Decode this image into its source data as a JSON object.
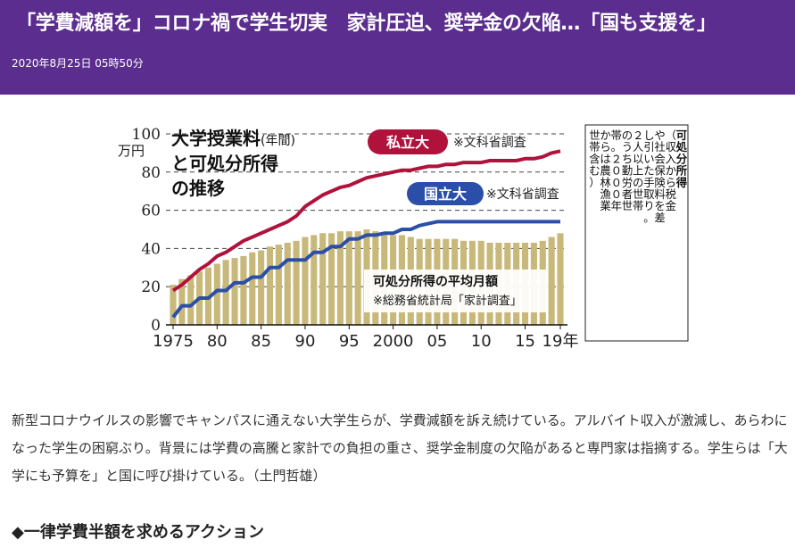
{
  "header": {
    "headline": "「学費減額を」コロナ禍で学生切実　家計圧迫、奨学金の欠陥…「国も支援を」",
    "date": "2020年8月25日 05時50分",
    "background": "#5b2d8e"
  },
  "chart_data": {
    "type": "bar",
    "title": "大学授業料",
    "title_suffix": "(年間)",
    "title_line2": "と可処分所得",
    "title_line3": "の推移",
    "ylabel": "万円",
    "ylim": [
      0,
      100
    ],
    "yticks": [
      0,
      20,
      40,
      60,
      80,
      100
    ],
    "x_tick_labels": [
      {
        "x": 1975,
        "label": "1975"
      },
      {
        "x": 1980,
        "label": "80"
      },
      {
        "x": 1985,
        "label": "85"
      },
      {
        "x": 1990,
        "label": "90"
      },
      {
        "x": 1995,
        "label": "95"
      },
      {
        "x": 2000,
        "label": "2000"
      },
      {
        "x": 2005,
        "label": "05"
      },
      {
        "x": 2010,
        "label": "10"
      },
      {
        "x": 2015,
        "label": "15"
      },
      {
        "x": 2019,
        "label": "19年"
      }
    ],
    "xlim": [
      1975,
      2019
    ],
    "grid": true,
    "series": [
      {
        "name": "可処分所得の平均月額",
        "source": "※総務省統計局「家計調査」",
        "type": "bar",
        "color": "#c8b87a",
        "x": [
          1975,
          1976,
          1977,
          1978,
          1979,
          1980,
          1981,
          1982,
          1983,
          1984,
          1985,
          1986,
          1987,
          1988,
          1989,
          1990,
          1991,
          1992,
          1993,
          1994,
          1995,
          1996,
          1997,
          1998,
          1999,
          2000,
          2001,
          2002,
          2003,
          2004,
          2005,
          2006,
          2007,
          2008,
          2009,
          2010,
          2011,
          2012,
          2013,
          2014,
          2015,
          2016,
          2017,
          2018,
          2019
        ],
        "values": [
          21,
          24,
          26,
          28,
          30,
          32,
          34,
          35,
          36,
          38,
          39,
          41,
          42,
          43,
          44,
          46,
          47,
          48,
          48,
          49,
          49,
          49,
          50,
          49,
          48,
          47,
          47,
          46,
          45,
          45,
          45,
          45,
          45,
          44,
          44,
          44,
          43,
          43,
          43,
          43,
          43,
          43,
          44,
          46,
          48
        ]
      },
      {
        "name": "私立大",
        "source": "※文科省調査",
        "type": "line",
        "color": "#b0123c",
        "x": [
          1975,
          1976,
          1977,
          1978,
          1979,
          1980,
          1981,
          1982,
          1983,
          1984,
          1985,
          1986,
          1987,
          1988,
          1989,
          1990,
          1991,
          1992,
          1993,
          1994,
          1995,
          1996,
          1997,
          1998,
          1999,
          2000,
          2001,
          2002,
          2003,
          2004,
          2005,
          2006,
          2007,
          2008,
          2009,
          2010,
          2011,
          2012,
          2013,
          2014,
          2015,
          2016,
          2017,
          2018,
          2019
        ],
        "values": [
          18,
          21,
          25,
          29,
          32,
          36,
          38,
          41,
          44,
          46,
          48,
          50,
          52,
          54,
          57,
          62,
          65,
          68,
          70,
          72,
          73,
          75,
          77,
          78,
          79,
          80,
          81,
          81,
          82,
          83,
          83,
          84,
          84,
          85,
          85,
          85,
          86,
          86,
          86,
          86,
          87,
          87,
          88,
          90,
          91
        ]
      },
      {
        "name": "国立大",
        "source": "※文科省調査",
        "type": "line",
        "color": "#2b4fa8",
        "x": [
          1975,
          1976,
          1977,
          1978,
          1979,
          1980,
          1981,
          1982,
          1983,
          1984,
          1985,
          1986,
          1987,
          1988,
          1989,
          1990,
          1991,
          1992,
          1993,
          1994,
          1995,
          1996,
          1997,
          1998,
          1999,
          2000,
          2001,
          2002,
          2003,
          2004,
          2005,
          2006,
          2007,
          2008,
          2009,
          2010,
          2011,
          2012,
          2013,
          2014,
          2015,
          2016,
          2017,
          2018,
          2019
        ],
        "values": [
          4,
          10,
          10,
          14,
          14,
          18,
          18,
          22,
          22,
          25,
          25,
          30,
          30,
          34,
          34,
          34,
          38,
          38,
          41,
          41,
          45,
          45,
          47,
          47,
          48,
          48,
          50,
          50,
          52,
          53,
          54,
          54,
          54,
          54,
          54,
          54,
          54,
          54,
          54,
          54,
          54,
          54,
          54,
          54,
          54
        ]
      }
    ],
    "note": [
      "可処分所得",
      "（収入から",
      "税金や社会保険料",
      "を差し引いた",
      "手取り。２人以上",
      "の世帯",
      "のうち勤労者世帯。",
      "２０００年から",
      "は農林漁業世帯含む）"
    ],
    "note_columns": [
      "可処分所得",
      "（収入から税金",
      "や社会保険料を差",
      "し引いた手取り。",
      "２人以上の世帯",
      "のうち勤労者世",
      "帯。２０００年",
      "からは農林漁業",
      "世帯含む）"
    ]
  },
  "article": {
    "paragraph": "新型コロナウイルスの影響でキャンパスに通えない大学生らが、学費減額を訴え続けている。アルバイト収入が激減し、あらわになった学生の困窮ぶり。背景には学費の高騰と家計での負担の重さ、奨学金制度の欠陥があると専門家は指摘する。学生らは「大学にも予算を」と国に呼び掛けている。（土門哲雄）",
    "section_heading": "◆一律学費半額を求めるアクション"
  }
}
